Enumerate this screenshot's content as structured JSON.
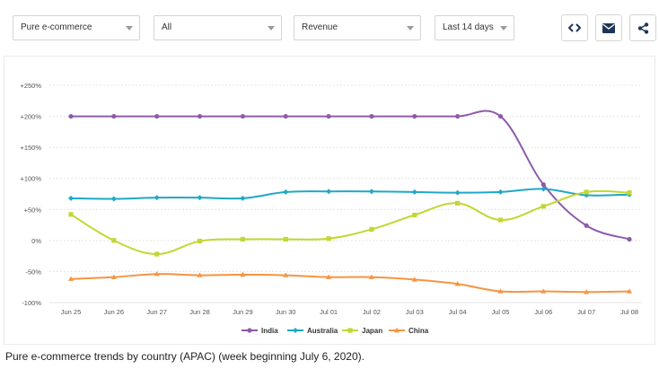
{
  "toolbar": {
    "filters": [
      {
        "value": "Pure e-commerce"
      },
      {
        "value": "All"
      },
      {
        "value": "Revenue"
      },
      {
        "value": "Last 14 days"
      }
    ],
    "buttons": [
      {
        "icon": "code-embed-icon"
      },
      {
        "icon": "envelope-icon"
      },
      {
        "icon": "share-icon"
      }
    ]
  },
  "chart_data": {
    "type": "line",
    "title": "",
    "xlabel": "",
    "ylabel": "",
    "ylim": [
      -100,
      250
    ],
    "yticks": [
      -100,
      -50,
      0,
      50,
      100,
      150,
      200,
      250
    ],
    "ytick_labels": [
      "-100%",
      "-50%",
      "0%",
      "+50%",
      "+100%",
      "+150%",
      "+200%",
      "+250%"
    ],
    "categories": [
      "Jun 25",
      "Jun 26",
      "Jun 27",
      "Jun 28",
      "Jun 29",
      "Jun 30",
      "Jul 01",
      "Jul 02",
      "Jul 03",
      "Jul 04",
      "Jul 05",
      "Jul 06",
      "Jul 07",
      "Jul 08"
    ],
    "grid": true,
    "legend_position": "bottom-center",
    "series": [
      {
        "name": "India",
        "color": "#8e5ba8",
        "marker": "circle",
        "values": [
          200,
          200,
          200,
          200,
          200,
          200,
          200,
          200,
          200,
          200,
          200,
          90,
          24,
          2
        ]
      },
      {
        "name": "Australia",
        "color": "#1fa8c8",
        "marker": "diamond",
        "values": [
          68,
          67,
          69,
          69,
          68,
          78,
          79,
          79,
          78,
          77,
          78,
          83,
          73,
          74
        ]
      },
      {
        "name": "Japan",
        "color": "#c2d733",
        "marker": "square",
        "values": [
          42,
          0,
          -22,
          -1,
          2,
          2,
          3,
          18,
          41,
          60,
          33,
          55,
          78,
          77
        ]
      },
      {
        "name": "China",
        "color": "#f59542",
        "marker": "triangle",
        "values": [
          -62,
          -59,
          -54,
          -56,
          -55,
          -56,
          -59,
          -59,
          -63,
          -70,
          -82,
          -82,
          -83,
          -82
        ]
      }
    ]
  },
  "caption": "Pure e-commerce trends by country (APAC) (week beginning July 6, 2020)."
}
